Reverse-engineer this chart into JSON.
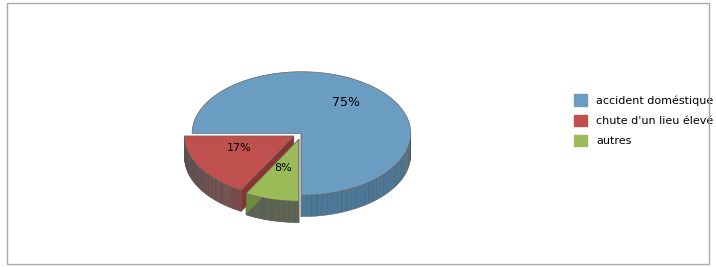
{
  "labels": [
    "accident doméstique",
    "chute d'un lieu élevé",
    "autres"
  ],
  "values": [
    75,
    17,
    8
  ],
  "colors_top": [
    "#6b9dc2",
    "#c0504d",
    "#9bbb59"
  ],
  "colors_side": [
    "#4a7a9b",
    "#8b3330",
    "#6e8b3d"
  ],
  "startangle": 270,
  "explode": [
    0.0,
    0.08,
    0.1
  ],
  "pct_labels": [
    "75%",
    "17%",
    "8%"
  ],
  "background_color": "#ffffff",
  "legend_labels": [
    "accident doméstique",
    "chute d'un lieu élevé",
    "autres"
  ]
}
